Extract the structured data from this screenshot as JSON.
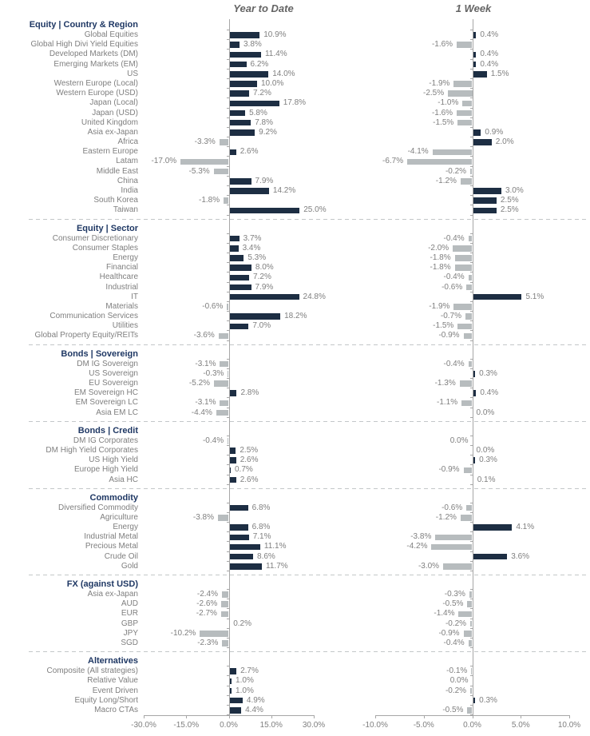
{
  "titles": {
    "ytd": "Year to Date",
    "week": "1 Week"
  },
  "colors": {
    "positive_bar": "#1d2e43",
    "negative_bar": "#b7bcbe",
    "section_header_text": "#1f3864",
    "category_label_text": "#7f7f7f",
    "value_label_text": "#7f7f7f",
    "column_title_text": "#646464",
    "axis_line": "#a6a6a6",
    "separator_dash": "#c3c7c9"
  },
  "chart_data": {
    "type": "bar",
    "orientation": "horizontal",
    "grid": false,
    "legend": "none",
    "value_format": "0.0%",
    "columns": [
      {
        "key": "ytd",
        "name": "Year to Date",
        "xlim": [
          -30,
          30
        ],
        "axis_ticks": [
          "-30.0%",
          "-15.0%",
          "0.0%",
          "15.0%",
          "30.0%"
        ]
      },
      {
        "key": "week",
        "name": "1 Week",
        "xlim": [
          -10,
          10
        ],
        "axis_ticks": [
          "-10.0%",
          "-5.0%",
          "0.0%",
          "5.0%",
          "10.0%"
        ]
      }
    ],
    "sections": [
      {
        "header": "Equity | Country & Region",
        "rows": [
          {
            "label": "Global Equities",
            "ytd": 10.9,
            "week": 0.4
          },
          {
            "label": "Global High Divi Yield Equities",
            "ytd": 3.8,
            "week": -1.6
          },
          {
            "label": "Developed Markets (DM)",
            "ytd": 11.4,
            "week": 0.4
          },
          {
            "label": "Emerging Markets (EM)",
            "ytd": 6.2,
            "week": 0.4
          },
          {
            "label": "US",
            "ytd": 14.0,
            "week": 1.5
          },
          {
            "label": "Western Europe (Local)",
            "ytd": 10.0,
            "week": -1.9
          },
          {
            "label": "Western Europe (USD)",
            "ytd": 7.2,
            "week": -2.5
          },
          {
            "label": "Japan (Local)",
            "ytd": 17.8,
            "week": -1.0
          },
          {
            "label": "Japan (USD)",
            "ytd": 5.8,
            "week": -1.6
          },
          {
            "label": "United Kingdom",
            "ytd": 7.8,
            "week": -1.5
          },
          {
            "label": "Asia ex-Japan",
            "ytd": 9.2,
            "week": 0.9
          },
          {
            "label": "Africa",
            "ytd": -3.3,
            "week": 2.0
          },
          {
            "label": "Eastern Europe",
            "ytd": 2.6,
            "week": -4.1
          },
          {
            "label": "Latam",
            "ytd": -17.0,
            "week": -6.7
          },
          {
            "label": "Middle East",
            "ytd": -5.3,
            "week": -0.2
          },
          {
            "label": "China",
            "ytd": 7.9,
            "week": -1.2
          },
          {
            "label": "India",
            "ytd": 14.2,
            "week": 3.0
          },
          {
            "label": "South Korea",
            "ytd": -1.8,
            "week": 2.5
          },
          {
            "label": "Taiwan",
            "ytd": 25.0,
            "week": 2.5
          }
        ]
      },
      {
        "header": "Equity | Sector",
        "rows": [
          {
            "label": "Consumer Discretionary",
            "ytd": 3.7,
            "week": -0.4
          },
          {
            "label": "Consumer Staples",
            "ytd": 3.4,
            "week": -2.0
          },
          {
            "label": "Energy",
            "ytd": 5.3,
            "week": -1.8
          },
          {
            "label": "Financial",
            "ytd": 8.0,
            "week": -1.8
          },
          {
            "label": "Healthcare",
            "ytd": 7.2,
            "week": -0.4
          },
          {
            "label": "Industrial",
            "ytd": 7.9,
            "week": -0.6
          },
          {
            "label": "IT",
            "ytd": 24.8,
            "week": 5.1
          },
          {
            "label": "Materials",
            "ytd": -0.6,
            "week": -1.9
          },
          {
            "label": "Communication Services",
            "ytd": 18.2,
            "week": -0.7
          },
          {
            "label": "Utilities",
            "ytd": 7.0,
            "week": -1.5
          },
          {
            "label": "Global Property Equity/REITs",
            "ytd": -3.6,
            "week": -0.9
          }
        ]
      },
      {
        "header": "Bonds | Sovereign",
        "rows": [
          {
            "label": "DM IG Sovereign",
            "ytd": -3.1,
            "week": -0.4
          },
          {
            "label": "US Sovereign",
            "ytd": -0.3,
            "week": 0.3
          },
          {
            "label": "EU Sovereign",
            "ytd": -5.2,
            "week": -1.3
          },
          {
            "label": "EM Sovereign HC",
            "ytd": 2.8,
            "week": 0.4
          },
          {
            "label": "EM Sovereign LC",
            "ytd": -3.1,
            "week": -1.1
          },
          {
            "label": "Asia EM LC",
            "ytd": -4.4,
            "week": 0.0
          }
        ]
      },
      {
        "header": "Bonds | Credit",
        "rows": [
          {
            "label": "DM IG Corporates",
            "ytd": -0.4,
            "week": 0.0,
            "week_side": "left"
          },
          {
            "label": "DM High Yield Corporates",
            "ytd": 2.5,
            "week": 0.0
          },
          {
            "label": "US High Yield",
            "ytd": 2.6,
            "week": 0.3
          },
          {
            "label": "Europe High Yield",
            "ytd": 0.7,
            "week": -0.9
          },
          {
            "label": "Asia HC",
            "ytd": 2.6,
            "week": 0.1
          }
        ]
      },
      {
        "header": "Commodity",
        "rows": [
          {
            "label": "Diversified Commodity",
            "ytd": 6.8,
            "week": -0.6
          },
          {
            "label": "Agriculture",
            "ytd": -3.8,
            "week": -1.2
          },
          {
            "label": "Energy",
            "ytd": 6.8,
            "week": 4.1
          },
          {
            "label": "Industrial Metal",
            "ytd": 7.1,
            "week": -3.8
          },
          {
            "label": "Precious Metal",
            "ytd": 11.1,
            "week": -4.2
          },
          {
            "label": "Crude Oil",
            "ytd": 8.6,
            "week": 3.6
          },
          {
            "label": "Gold",
            "ytd": 11.7,
            "week": -3.0
          }
        ]
      },
      {
        "header": "FX (against USD)",
        "rows": [
          {
            "label": "Asia ex-Japan",
            "ytd": -2.4,
            "week": -0.3
          },
          {
            "label": "AUD",
            "ytd": -2.6,
            "week": -0.5
          },
          {
            "label": "EUR",
            "ytd": -2.7,
            "week": -1.4
          },
          {
            "label": "GBP",
            "ytd": 0.2,
            "week": -0.2
          },
          {
            "label": "JPY",
            "ytd": -10.2,
            "week": -0.9
          },
          {
            "label": "SGD",
            "ytd": -2.3,
            "week": -0.4
          }
        ]
      },
      {
        "header": "Alternatives",
        "rows": [
          {
            "label": "Composite (All strategies)",
            "ytd": 2.7,
            "week": -0.1
          },
          {
            "label": "Relative Value",
            "ytd": 1.0,
            "week": 0.0,
            "week_side": "left"
          },
          {
            "label": "Event Driven",
            "ytd": 1.0,
            "week": -0.2
          },
          {
            "label": "Equity Long/Short",
            "ytd": 4.9,
            "week": 0.3
          },
          {
            "label": "Macro CTAs",
            "ytd": 4.4,
            "week": -0.5
          }
        ]
      }
    ]
  }
}
